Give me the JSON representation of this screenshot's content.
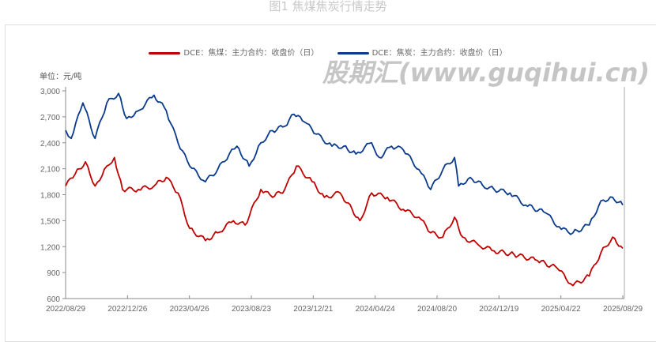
{
  "chart_data": {
    "type": "line",
    "title": "图1 焦煤焦炭行情走势",
    "unit_label": "单位：元/吨",
    "ylim": [
      600,
      3000
    ],
    "yticks": [
      "3,000",
      "2,700",
      "2,400",
      "2,100",
      "1,800",
      "1,500",
      "1,200",
      "900",
      "600"
    ],
    "ytick_values": [
      3000,
      2700,
      2400,
      2100,
      1800,
      1500,
      1200,
      900,
      600
    ],
    "xticks": [
      "2022/08/29",
      "2022/12/26",
      "2023/04/26",
      "2023/08/23",
      "2023/12/21",
      "2024/04/24",
      "2024/08/20",
      "2024/12/19",
      "2025/04/22",
      "2025/08/29"
    ],
    "x_unit": "days since 2022/08/29",
    "xlim": [
      0,
      1096
    ],
    "legend_position": "top",
    "series": [
      {
        "name": "DCE：焦煤：主力合约：收盘价（日）",
        "color": "#c00000",
        "x": [
          0,
          19,
          39,
          58,
          81,
          96,
          112,
          143,
          174,
          198,
          221,
          244,
          275,
          299,
          330,
          353,
          384,
          407,
          431,
          454,
          485,
          509,
          540,
          579,
          602,
          633,
          664,
          695,
          718,
          742,
          765,
          781,
          812,
          843,
          882,
          928,
          967,
          998,
          1030,
          1053,
          1076,
          1096
        ],
        "y": [
          1900,
          2040,
          2180,
          1900,
          2130,
          2230,
          1860,
          1860,
          1900,
          2000,
          1820,
          1410,
          1270,
          1360,
          1500,
          1450,
          1860,
          1770,
          1860,
          2130,
          1950,
          1770,
          1820,
          1500,
          1820,
          1770,
          1630,
          1540,
          1360,
          1310,
          1540,
          1310,
          1220,
          1150,
          1110,
          1040,
          950,
          750,
          860,
          1130,
          1310,
          1180
        ]
      },
      {
        "name": "DCE：焦炭：主力合约：收盘价（日）",
        "color": "#0a3a8c",
        "x": [
          0,
          11,
          34,
          58,
          81,
          104,
          120,
          143,
          174,
          198,
          221,
          244,
          275,
          299,
          322,
          337,
          361,
          384,
          407,
          431,
          449,
          470,
          493,
          524,
          547,
          571,
          602,
          617,
          641,
          664,
          695,
          718,
          742,
          765,
          773,
          796,
          820,
          843,
          874,
          905,
          944,
          975,
          998,
          1030,
          1053,
          1076,
          1096
        ],
        "y": [
          2545,
          2450,
          2860,
          2450,
          2860,
          2970,
          2680,
          2770,
          2950,
          2770,
          2400,
          2130,
          1950,
          2090,
          2270,
          2360,
          2130,
          2400,
          2540,
          2590,
          2730,
          2640,
          2500,
          2360,
          2360,
          2270,
          2400,
          2230,
          2360,
          2320,
          2090,
          1860,
          2090,
          2230,
          1900,
          2000,
          1910,
          1860,
          1820,
          1680,
          1590,
          1400,
          1360,
          1450,
          1730,
          1770,
          1680
        ]
      }
    ]
  },
  "watermark": "股期汇(www.guqihui.cn)"
}
